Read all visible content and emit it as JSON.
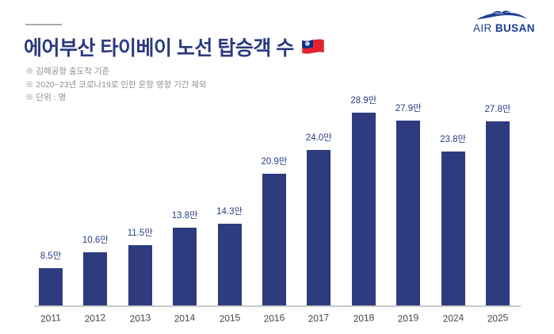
{
  "header": {
    "title": "에어부산 타이베이 노선 탑승객 수",
    "flag": "taiwan-flag",
    "notes": [
      "※ 김해공항 출도착 기준",
      "※ 2020~23년 코로나19로 인한 운항 영향 기간 제외",
      "※ 단위 : 명"
    ]
  },
  "logo": {
    "air": "AIR",
    "busan": "BUSAN"
  },
  "colors": {
    "bar": "#2e3b7e",
    "title": "#2b3a7e",
    "value_label": "#2c3c85",
    "note_text": "#8f8f8f",
    "year_label": "#474747",
    "axis_line": "#c9c9c9",
    "logo_navy": "#1d3e94",
    "flag_red": "#e0232e",
    "flag_blue": "#002d87"
  },
  "chart_data": {
    "type": "bar",
    "title": "에어부산 타이베이 노선 탑승객 수",
    "unit_note": "단위 : 명",
    "value_unit": "만",
    "categories": [
      "2011",
      "2012",
      "2013",
      "2014",
      "2015",
      "2016",
      "2017",
      "2018",
      "2019",
      "2024",
      "2025"
    ],
    "values": [
      8.5,
      10.6,
      11.5,
      13.8,
      14.3,
      20.9,
      24.0,
      28.9,
      27.9,
      23.8,
      27.8
    ],
    "value_labels": [
      "8.5만",
      "10.6만",
      "11.5만",
      "13.8만",
      "14.3만",
      "20.9만",
      "24.0만",
      "28.9만",
      "27.9만",
      "23.8만",
      "27.8만"
    ],
    "xlabel": "",
    "ylabel": "",
    "gridlines": false,
    "legend": false,
    "x_axis_line": true,
    "notes": [
      "김해공항 출도착 기준",
      "2020~23년 코로나19로 인한 운항 영향 기간 제외"
    ]
  }
}
